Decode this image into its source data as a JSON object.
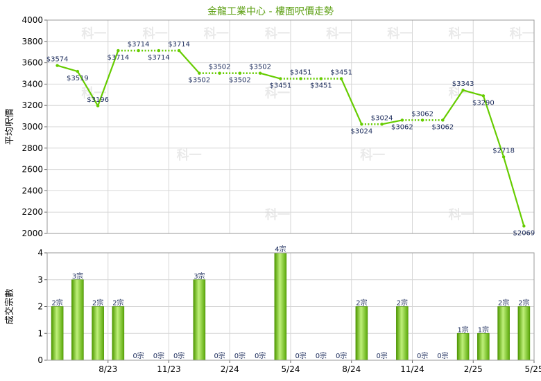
{
  "chart_data": {
    "type": "line",
    "title": "金龍工業中心 - 樓面呎價走勢",
    "title_color": "#5a9e0f",
    "watermark": "科一",
    "x_tick_labels": [
      "8/23",
      "11/23",
      "2/24",
      "5/24",
      "8/24",
      "11/24",
      "2/25",
      "5/25"
    ],
    "price_panel": {
      "ylabel": "平均呎價",
      "ylim": [
        2000,
        4000
      ],
      "yticks": [
        2000,
        2200,
        2400,
        2600,
        2800,
        3000,
        3200,
        3400,
        3600,
        3800,
        4000
      ],
      "line_color": "#66cc00",
      "points": [
        {
          "label": "$3574",
          "value": 3574,
          "transacted": true
        },
        {
          "label": "$3519",
          "value": 3519,
          "transacted": true
        },
        {
          "label": "$3196",
          "value": 3196,
          "transacted": true
        },
        {
          "label": "$3714",
          "value": 3714,
          "transacted": true
        },
        {
          "label": "$3714",
          "value": 3714,
          "transacted": false
        },
        {
          "label": "$3714",
          "value": 3714,
          "transacted": false
        },
        {
          "label": "$3714",
          "value": 3714,
          "transacted": false
        },
        {
          "label": "$3502",
          "value": 3502,
          "transacted": true
        },
        {
          "label": "$3502",
          "value": 3502,
          "transacted": false
        },
        {
          "label": "$3502",
          "value": 3502,
          "transacted": false
        },
        {
          "label": "$3502",
          "value": 3502,
          "transacted": false
        },
        {
          "label": "$3451",
          "value": 3451,
          "transacted": true
        },
        {
          "label": "$3451",
          "value": 3451,
          "transacted": false
        },
        {
          "label": "$3451",
          "value": 3451,
          "transacted": false
        },
        {
          "label": "$3451",
          "value": 3451,
          "transacted": false
        },
        {
          "label": "$3024",
          "value": 3024,
          "transacted": true
        },
        {
          "label": "$3024",
          "value": 3024,
          "transacted": false
        },
        {
          "label": "$3062",
          "value": 3062,
          "transacted": true
        },
        {
          "label": "$3062",
          "value": 3062,
          "transacted": false
        },
        {
          "label": "$3062",
          "value": 3062,
          "transacted": false
        },
        {
          "label": "$3343",
          "value": 3343,
          "transacted": true
        },
        {
          "label": "$3290",
          "value": 3290,
          "transacted": true
        },
        {
          "label": "$2718",
          "value": 2718,
          "transacted": true
        },
        {
          "label": "$2069",
          "value": 2069,
          "transacted": true
        }
      ]
    },
    "volume_panel": {
      "ylabel": "成交宗數",
      "ylim": [
        0,
        4
      ],
      "yticks": [
        0,
        1,
        2,
        3,
        4
      ],
      "bar_color": "#66bb11",
      "unit": "宗",
      "values": [
        2,
        3,
        2,
        2,
        0,
        0,
        0,
        3,
        0,
        0,
        0,
        4,
        0,
        0,
        0,
        2,
        0,
        2,
        0,
        0,
        1,
        1,
        2,
        2
      ]
    },
    "grid": true
  }
}
